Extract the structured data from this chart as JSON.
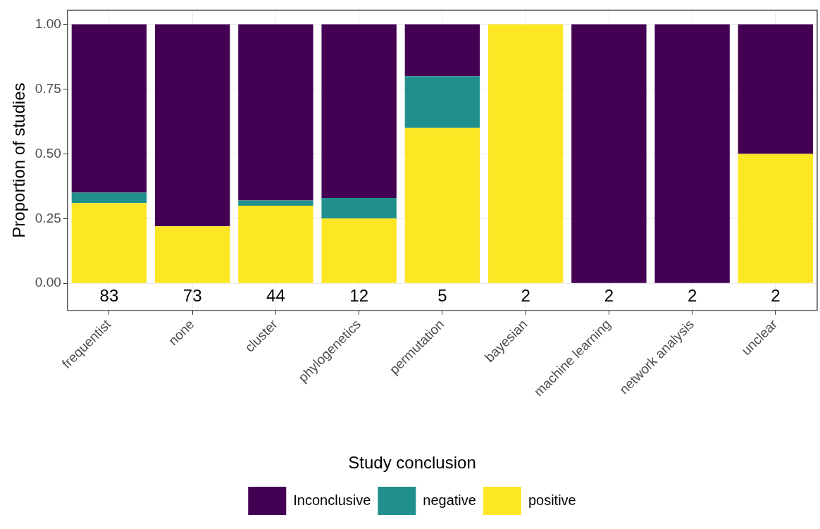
{
  "chart_data": {
    "type": "bar",
    "stacked": true,
    "ylabel": "Proportion of studies",
    "legend_title": "Study conclusion",
    "categories": [
      "frequentist",
      "none",
      "cluster",
      "phylogenetics",
      "permutation",
      "bayesian",
      "machine learning",
      "network analysis",
      "unclear"
    ],
    "series": [
      {
        "name": "positive",
        "color": "#fde725",
        "values": [
          0.31,
          0.22,
          0.3,
          0.25,
          0.6,
          1,
          0,
          0,
          0.5
        ]
      },
      {
        "name": "negative",
        "color": "#21908c",
        "values": [
          0.04,
          0,
          0.02,
          0.08,
          0.2,
          0,
          0,
          0,
          0
        ]
      },
      {
        "name": "Inconclusive",
        "color": "#440154",
        "values": [
          0.65,
          0.78,
          0.68,
          0.67,
          0.2,
          0,
          1,
          1,
          0.5
        ]
      }
    ],
    "ylim": [
      -0.105,
      1.055
    ],
    "yticks": [
      {
        "value": 0,
        "label": "0.00"
      },
      {
        "value": 0.25,
        "label": "0.25"
      },
      {
        "value": 0.5,
        "label": "0.50"
      },
      {
        "value": 0.75,
        "label": "0.75"
      },
      {
        "value": 1,
        "label": "1.00"
      }
    ],
    "grid": true,
    "legend": "bottom",
    "annotations": [
      "83",
      "73",
      "44",
      "12",
      "5",
      "2",
      "2",
      "2",
      "2"
    ]
  }
}
